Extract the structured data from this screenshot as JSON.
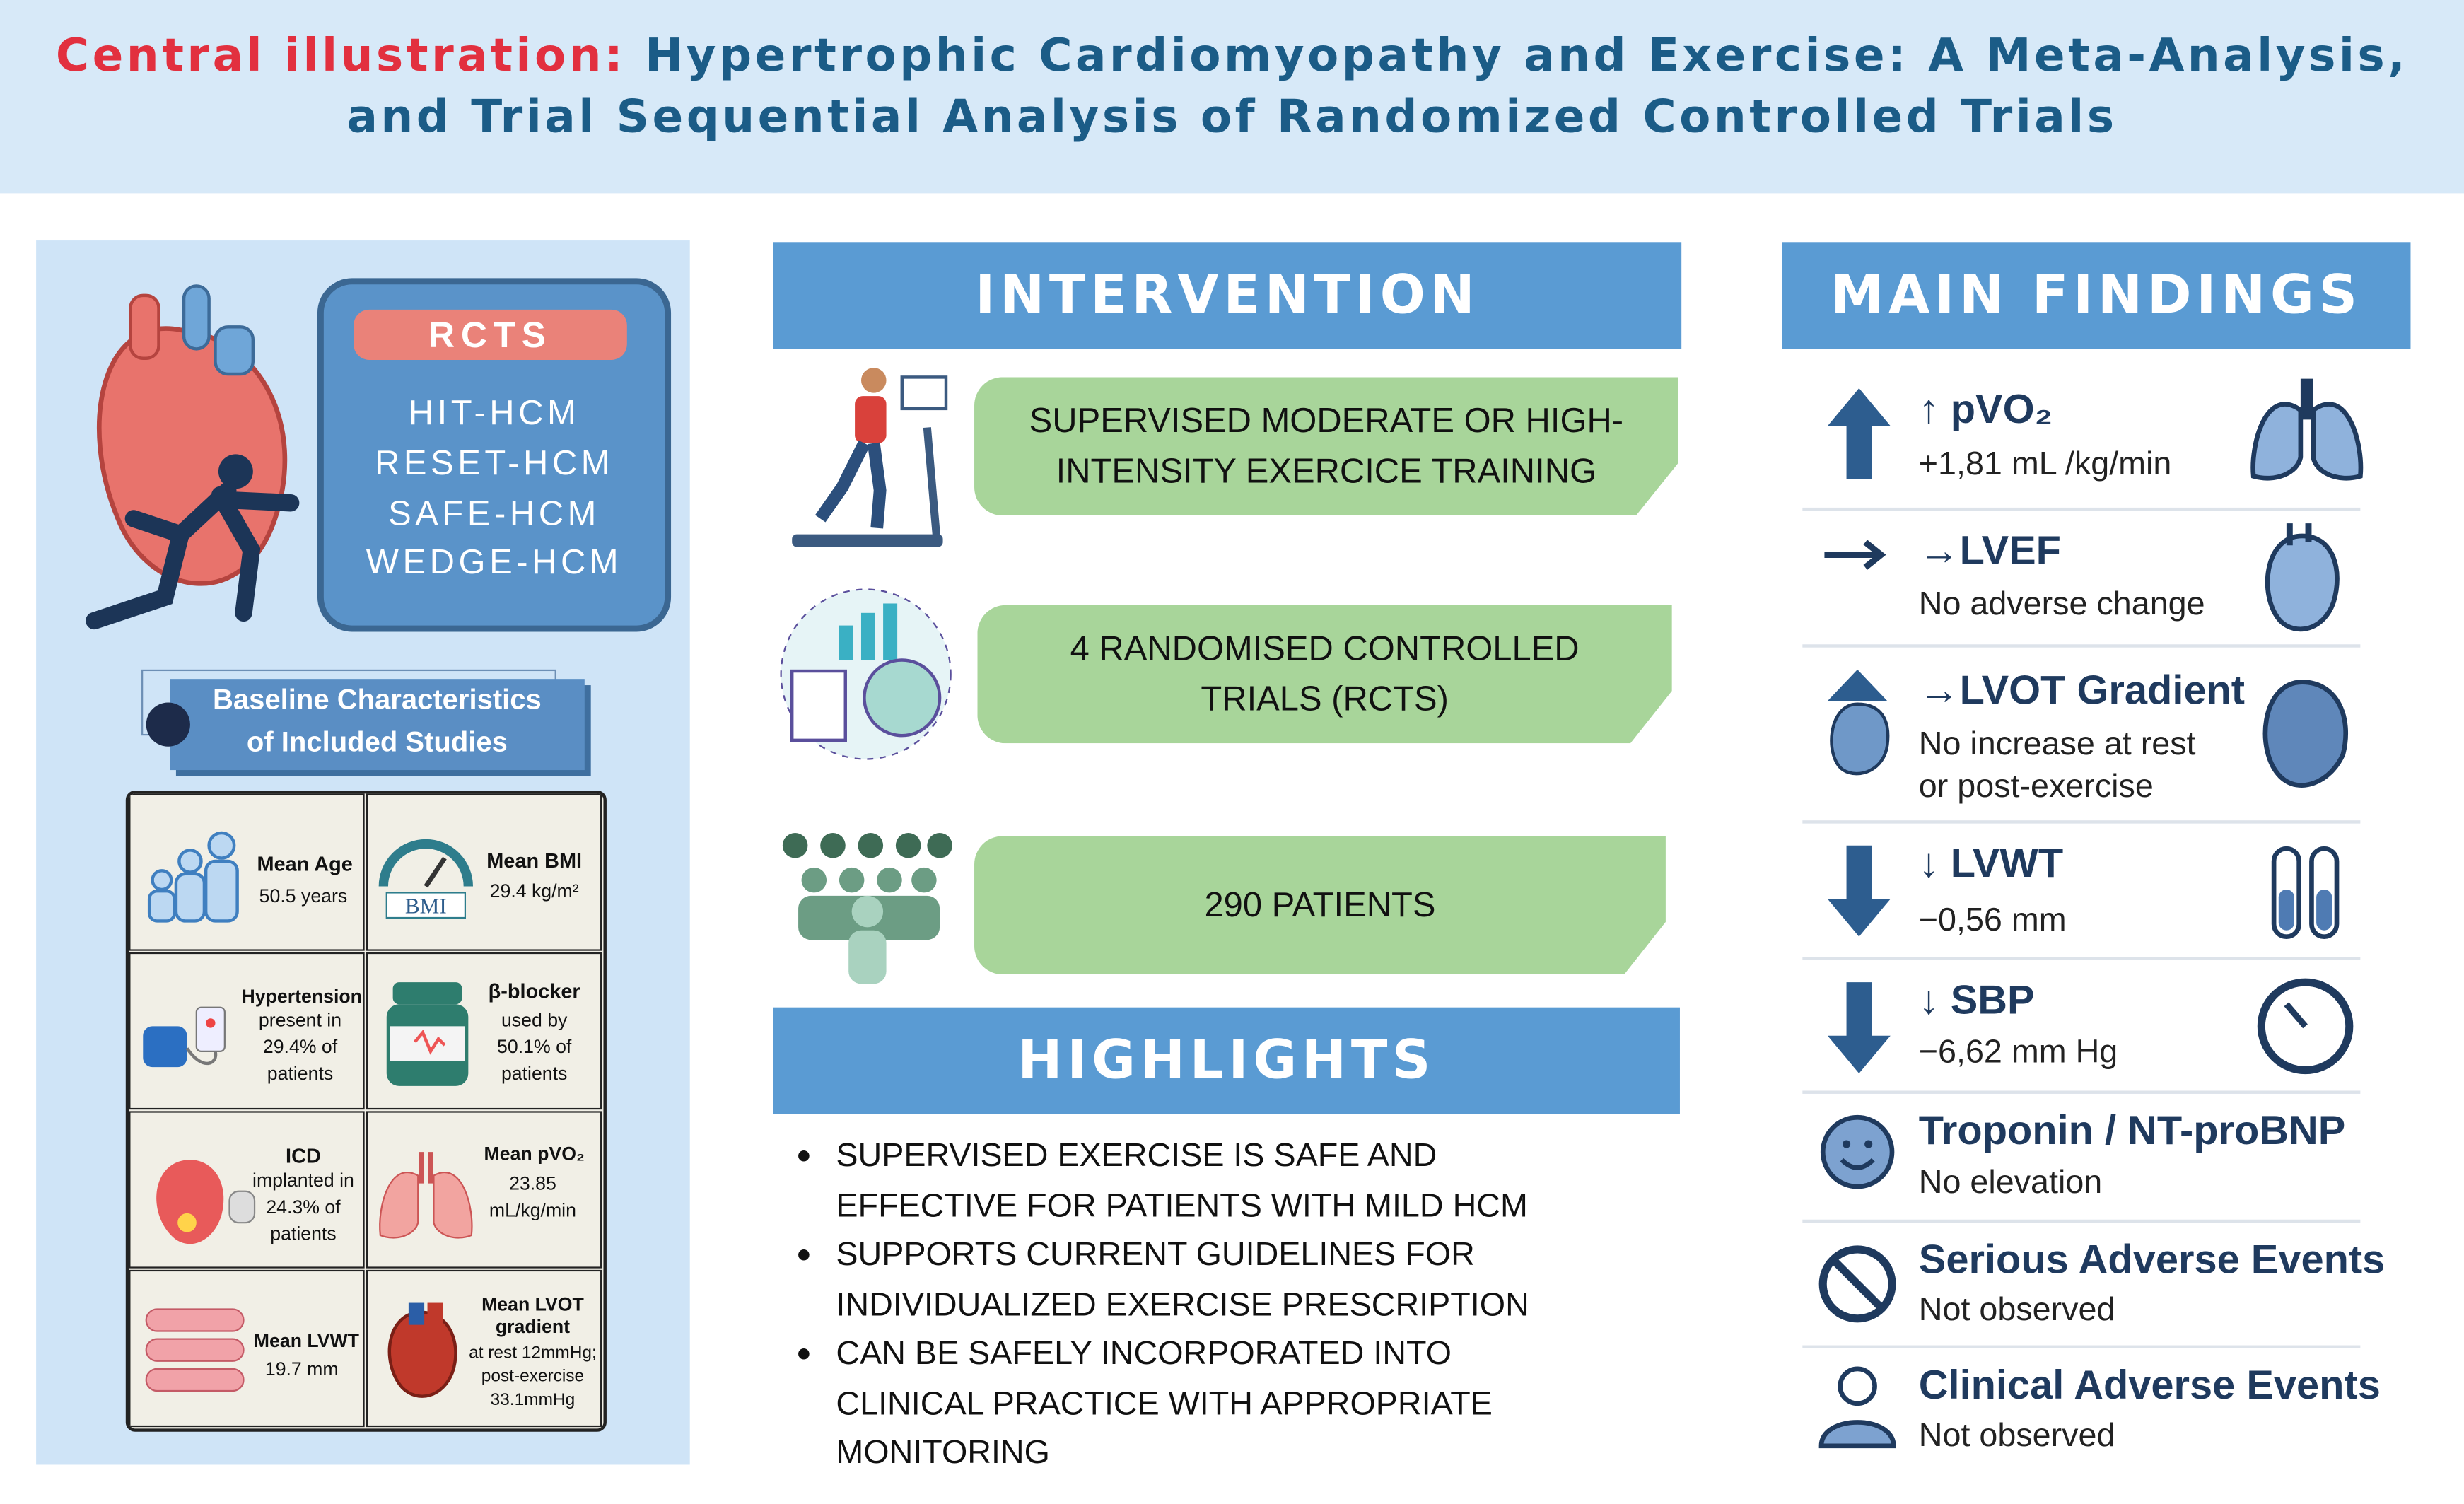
{
  "header": {
    "label": "Central illustration:",
    "title_line_1": "Hypertrophic Cardiomyopathy and Exercise: A Meta-Analysis,",
    "title_line_2": "and Trial Sequential Analysis of Randomized Controlled Trials"
  },
  "rcts": {
    "title": "RCTS",
    "trials": [
      "HIT-HCM",
      "RESET-HCM",
      "SAFE-HCM",
      "WEDGE-HCM"
    ]
  },
  "baseline": {
    "title_line_1": "Baseline Characteristics",
    "title_line_2": "of Included Studies",
    "bmi_icon": "BMI",
    "cells": [
      {
        "label": "Mean Age",
        "text": "50.5 years"
      },
      {
        "label": "Mean BMI",
        "text": "29.4 kg/m²"
      },
      {
        "label": "Hypertension",
        "text": "present in 29.4% of patients"
      },
      {
        "label": "β-blocker",
        "text": "used by 50.1% of patients"
      },
      {
        "label": "ICD",
        "text": "implanted in 24.3% of patients"
      },
      {
        "label": "Mean pVO₂",
        "text": "23.85 mL/kg/min"
      },
      {
        "label": "Mean LVWT",
        "text": "19.7 mm"
      },
      {
        "label": "Mean LVOT gradient",
        "text": "at rest 12mmHg; post-exercise 33.1mmHg"
      }
    ]
  },
  "intervention": {
    "title": "INTERVENTION",
    "items": [
      "SUPERVISED MODERATE OR HIGH-INTENSITY EXERCICE TRAINING",
      "4 RANDOMISED CONTROLLED TRIALS (RCTS)",
      "290 PATIENTS"
    ]
  },
  "highlights": {
    "title": "HIGHLIGHTS",
    "items": [
      "SUPERVISED EXERCISE IS SAFE AND EFFECTIVE FOR PATIENTS WITH MILD HCM",
      "SUPPORTS CURRENT GUIDELINES FOR INDIVIDUALIZED EXERCISE PRESCRIPTION",
      "CAN BE SAFELY INCORPORATED INTO CLINICAL PRACTICE WITH APPROPRIATE MONITORING"
    ]
  },
  "findings": {
    "title": "MAIN FINDINGS",
    "items": [
      {
        "heading": "↑ pVO₂",
        "text": "+1,81 mL /kg/min"
      },
      {
        "heading": "→LVEF",
        "text": "No adverse change"
      },
      {
        "heading": "→LVOT Gradient",
        "text": "No increase at rest or post-exercise"
      },
      {
        "heading": "↓ LVWT",
        "text": "−0,56 mm"
      },
      {
        "heading": "↓ SBP",
        "text": "−6,62 mm Hg"
      },
      {
        "heading": "Troponin / NT-proBNP",
        "text": "No elevation"
      },
      {
        "heading": "Serious Adverse Events",
        "text": "Not observed"
      },
      {
        "heading": "Clinical Adverse Events",
        "text": "Not observed"
      }
    ]
  }
}
